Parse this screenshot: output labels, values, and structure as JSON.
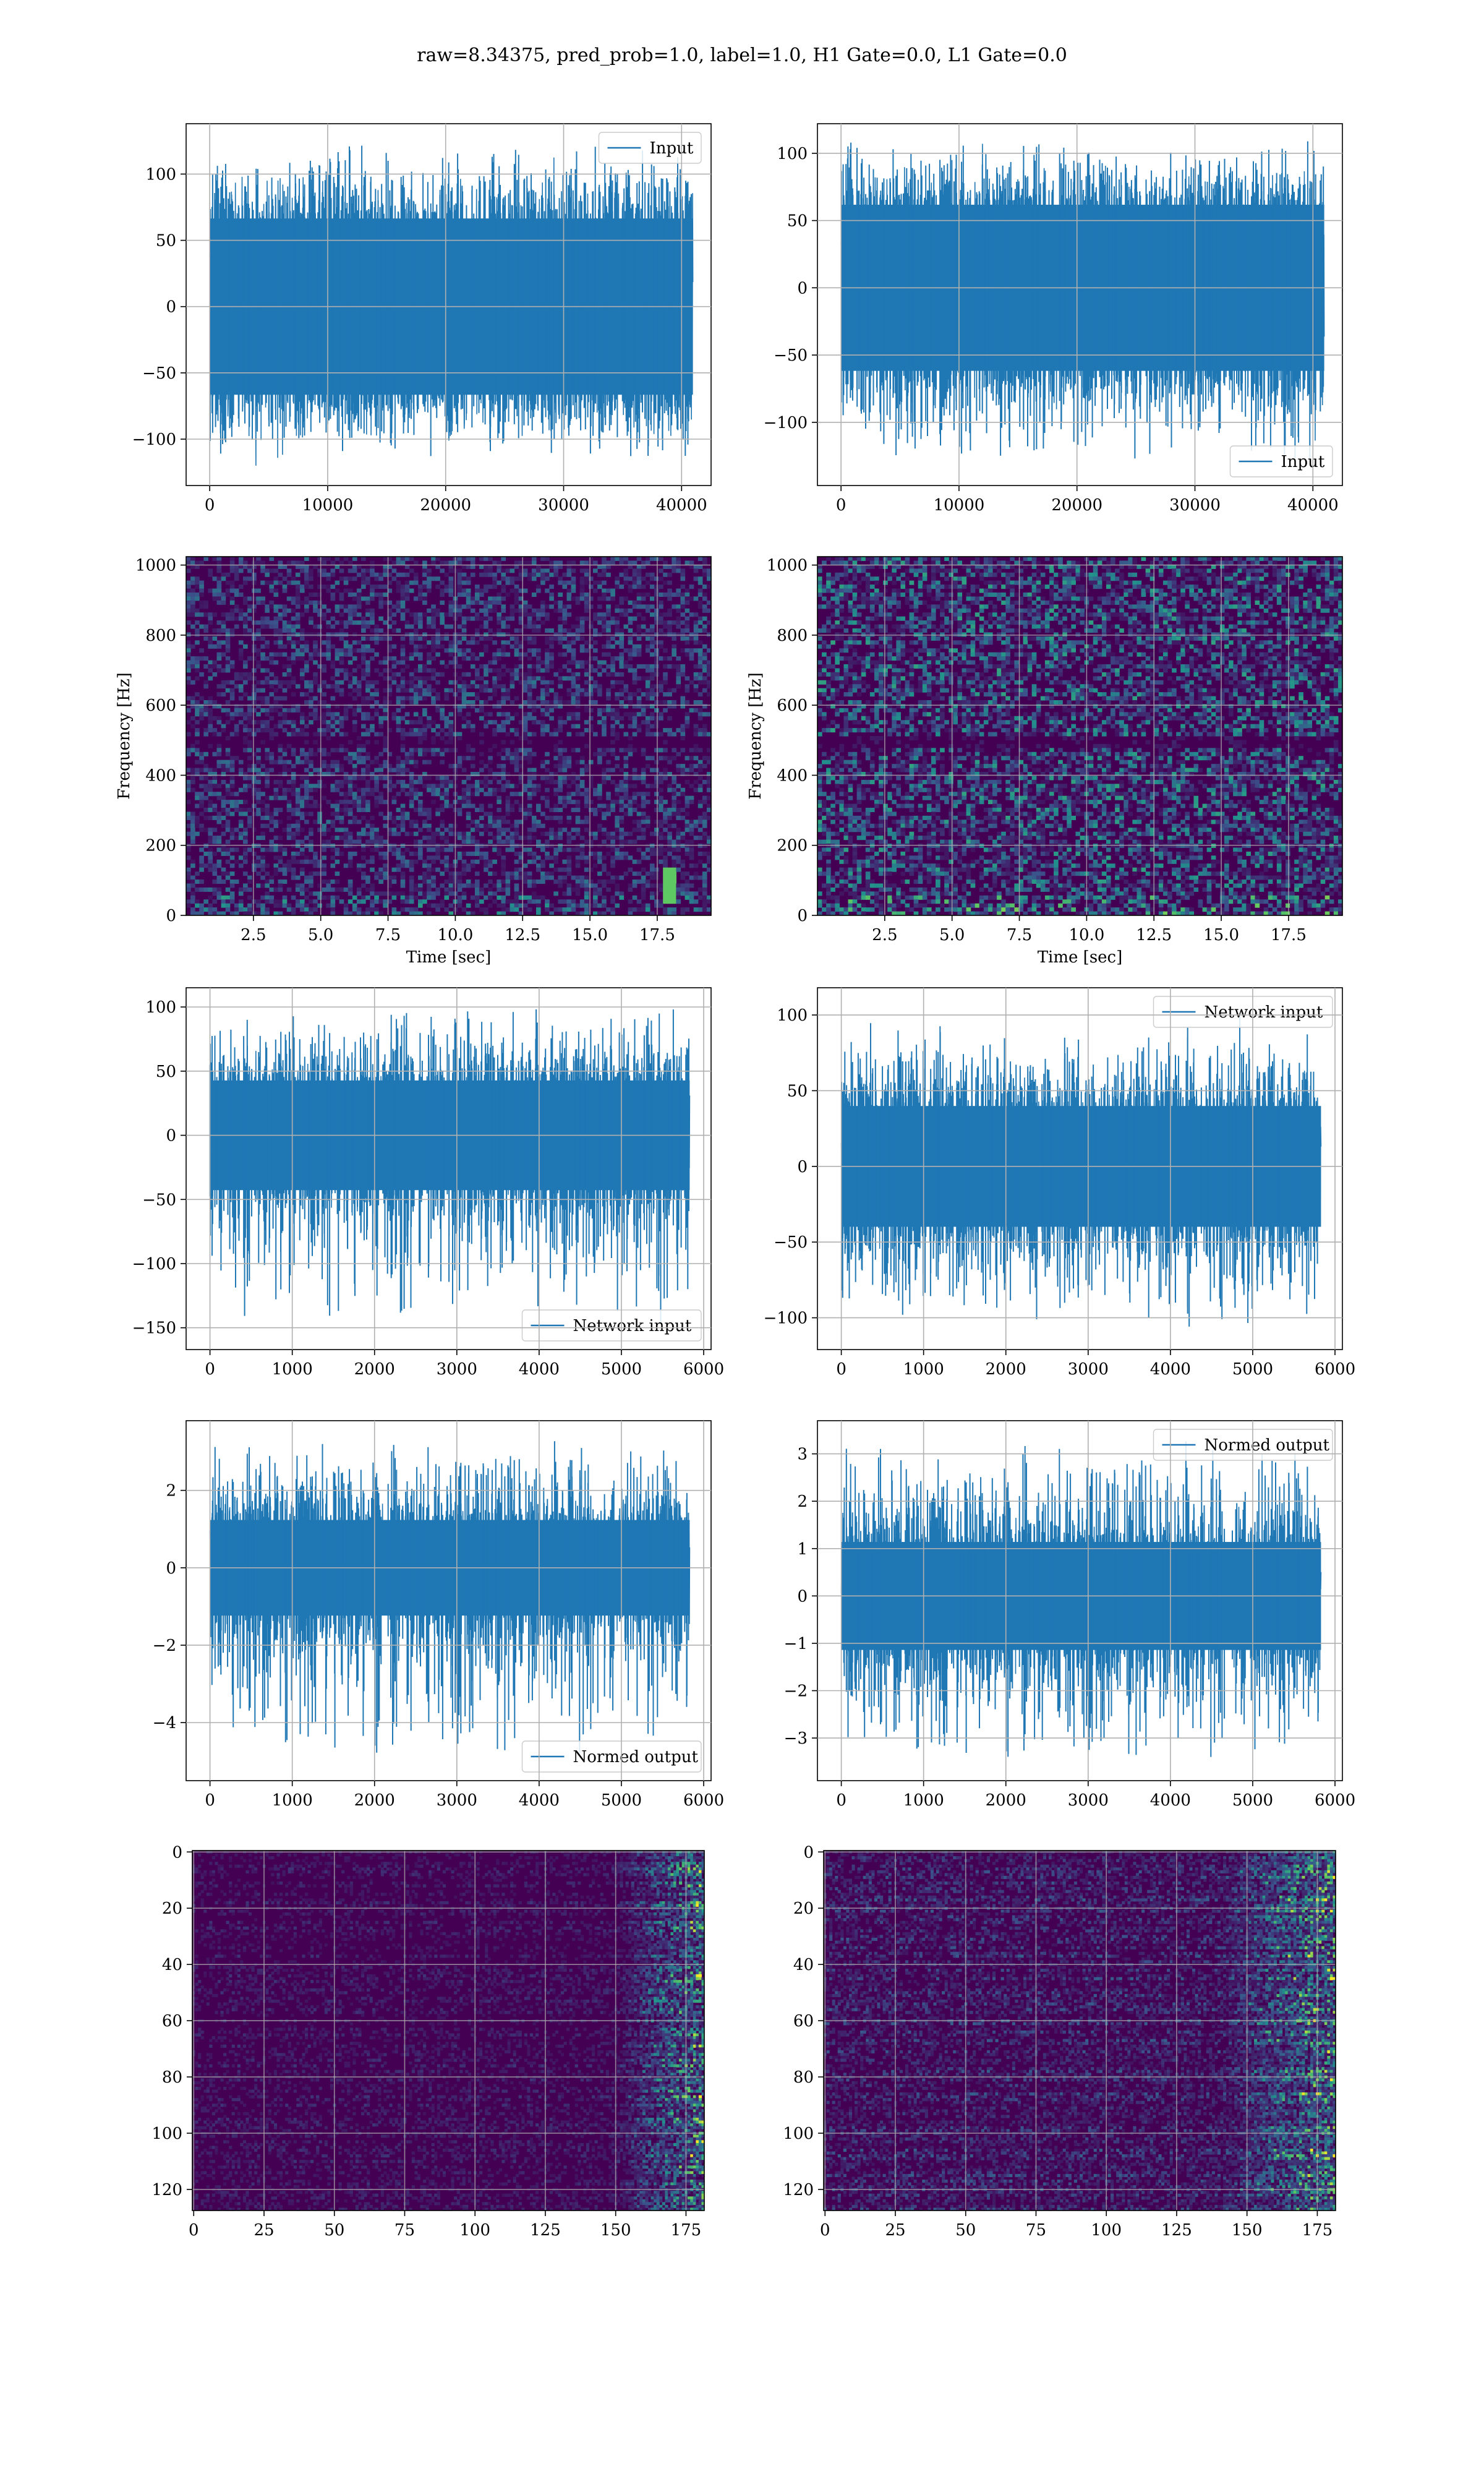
{
  "title": "raw=8.34375, pred_prob=1.0, label=1.0, H1 Gate=0.0, L1 Gate=0.0",
  "colors": {
    "line": "#1f77b4",
    "grid": "#b0b0b0",
    "viridis_low": "#440154",
    "viridis_mid": "#21918c",
    "viridis_high": "#fde725"
  },
  "chart_data": [
    {
      "id": "r1c1",
      "type": "line",
      "series": [
        {
          "name": "Input"
        }
      ],
      "xlim": [
        -2000,
        42500
      ],
      "ylim": [
        -135,
        138
      ],
      "xticks": [
        0,
        10000,
        20000,
        30000,
        40000
      ],
      "yticks": [
        -100,
        -50,
        0,
        50,
        100
      ],
      "xticklabels": [
        "0",
        "10000",
        "20000",
        "30000",
        "40000"
      ],
      "yticklabels": [
        "−100",
        "−50",
        "0",
        "50",
        "100"
      ],
      "legend": "top-right",
      "grid": true,
      "signal": {
        "x_range": [
          0,
          40960
        ],
        "core_amplitude": 70,
        "min": -120,
        "max": 128
      }
    },
    {
      "id": "r1c2",
      "type": "line",
      "series": [
        {
          "name": "Input"
        }
      ],
      "xlim": [
        -2000,
        42500
      ],
      "ylim": [
        -147,
        122
      ],
      "xticks": [
        0,
        10000,
        20000,
        30000,
        40000
      ],
      "yticks": [
        -100,
        -50,
        0,
        50,
        100
      ],
      "xticklabels": [
        "0",
        "10000",
        "20000",
        "30000",
        "40000"
      ],
      "yticklabels": [
        "−100",
        "−50",
        "0",
        "50",
        "100"
      ],
      "legend": "bottom-right",
      "grid": true,
      "signal": {
        "x_range": [
          0,
          40960
        ],
        "core_amplitude": 65,
        "min": -132,
        "max": 113
      }
    },
    {
      "id": "r2c1",
      "type": "heatmap",
      "xlim": [
        0,
        19.5
      ],
      "ylim": [
        0,
        1024
      ],
      "xticks": [
        2.5,
        5.0,
        7.5,
        10.0,
        12.5,
        15.0,
        17.5
      ],
      "yticks": [
        0,
        200,
        400,
        600,
        800,
        1000
      ],
      "xticklabels": [
        "2.5",
        "5.0",
        "7.5",
        "10.0",
        "12.5",
        "15.0",
        "17.5"
      ],
      "yticklabels": [
        "0",
        "200",
        "400",
        "600",
        "800",
        "1000"
      ],
      "xlabel": "Time [sec]",
      "ylabel": "Frequency [Hz]",
      "grid": true,
      "colormap": "viridis",
      "brightness": 0.18,
      "features": [
        {
          "time": 17.9,
          "freq_from": 40,
          "freq_to": 140,
          "level": 0.75
        }
      ],
      "dark_band_freq": 500
    },
    {
      "id": "r2c2",
      "type": "heatmap",
      "xlim": [
        0,
        19.5
      ],
      "ylim": [
        0,
        1024
      ],
      "xticks": [
        2.5,
        5.0,
        7.5,
        10.0,
        12.5,
        15.0,
        17.5
      ],
      "yticks": [
        0,
        200,
        400,
        600,
        800,
        1000
      ],
      "xticklabels": [
        "2.5",
        "5.0",
        "7.5",
        "10.0",
        "12.5",
        "15.0",
        "17.5"
      ],
      "yticklabels": [
        "0",
        "200",
        "400",
        "600",
        "800",
        "1000"
      ],
      "xlabel": "Time [sec]",
      "ylabel": "Frequency [Hz]",
      "grid": true,
      "colormap": "viridis",
      "brightness": 0.26,
      "features": [],
      "dark_band_freq": 500
    },
    {
      "id": "r3c1",
      "type": "line",
      "series": [
        {
          "name": "Network input"
        }
      ],
      "xlim": [
        -290,
        6090
      ],
      "ylim": [
        -167,
        115
      ],
      "xticks": [
        0,
        1000,
        2000,
        3000,
        4000,
        5000,
        6000
      ],
      "yticks": [
        -150,
        -100,
        -50,
        0,
        50,
        100
      ],
      "xticklabels": [
        "0",
        "1000",
        "2000",
        "3000",
        "4000",
        "5000",
        "6000"
      ],
      "yticklabels": [
        "−150",
        "−100",
        "−50",
        "0",
        "50",
        "100"
      ],
      "legend": "bottom-right",
      "grid": true,
      "signal": {
        "x_range": [
          0,
          5830
        ],
        "core_amplitude": 45,
        "min": -155,
        "max": 103
      }
    },
    {
      "id": "r3c2",
      "type": "line",
      "series": [
        {
          "name": "Network input"
        }
      ],
      "xlim": [
        -290,
        6090
      ],
      "ylim": [
        -121,
        118
      ],
      "xticks": [
        0,
        1000,
        2000,
        3000,
        4000,
        5000,
        6000
      ],
      "yticks": [
        -100,
        -50,
        0,
        50,
        100
      ],
      "xticklabels": [
        "0",
        "1000",
        "2000",
        "3000",
        "4000",
        "5000",
        "6000"
      ],
      "yticklabels": [
        "−100",
        "−50",
        "0",
        "50",
        "100"
      ],
      "legend": "top-right",
      "grid": true,
      "signal": {
        "x_range": [
          0,
          5830
        ],
        "core_amplitude": 42,
        "min": -110,
        "max": 100
      }
    },
    {
      "id": "r4c1",
      "type": "line",
      "series": [
        {
          "name": "Normed output"
        }
      ],
      "xlim": [
        -290,
        6090
      ],
      "ylim": [
        -5.5,
        3.8
      ],
      "xticks": [
        0,
        1000,
        2000,
        3000,
        4000,
        5000,
        6000
      ],
      "yticks": [
        -4,
        -2,
        0,
        2
      ],
      "xticklabels": [
        "0",
        "1000",
        "2000",
        "3000",
        "4000",
        "5000",
        "6000"
      ],
      "yticklabels": [
        "−4",
        "−2",
        "0",
        "2"
      ],
      "legend": "bottom-right",
      "grid": true,
      "signal": {
        "x_range": [
          0,
          5830
        ],
        "core_amplitude": 1.3,
        "min": -5.1,
        "max": 3.4
      }
    },
    {
      "id": "r4c2",
      "type": "line",
      "series": [
        {
          "name": "Normed output"
        }
      ],
      "xlim": [
        -290,
        6090
      ],
      "ylim": [
        -3.9,
        3.7
      ],
      "xticks": [
        0,
        1000,
        2000,
        3000,
        4000,
        5000,
        6000
      ],
      "yticks": [
        -3,
        -2,
        -1,
        0,
        1,
        2,
        3
      ],
      "xticklabels": [
        "0",
        "1000",
        "2000",
        "3000",
        "4000",
        "5000",
        "6000"
      ],
      "yticklabels": [
        "−3",
        "−2",
        "−1",
        "0",
        "1",
        "2",
        "3"
      ],
      "legend": "top-right",
      "grid": true,
      "signal": {
        "x_range": [
          0,
          5830
        ],
        "core_amplitude": 1.2,
        "min": -3.6,
        "max": 3.4
      }
    },
    {
      "id": "r5c1",
      "type": "heatmap",
      "xlim": [
        -0.5,
        181.5
      ],
      "ylim": [
        127.5,
        -0.5
      ],
      "xticks": [
        0,
        25,
        50,
        75,
        100,
        125,
        150,
        175
      ],
      "yticks": [
        0,
        20,
        40,
        60,
        80,
        100,
        120
      ],
      "xticklabels": [
        "0",
        "25",
        "50",
        "75",
        "100",
        "125",
        "150",
        "175"
      ],
      "yticklabels": [
        "0",
        "20",
        "40",
        "60",
        "80",
        "100",
        "120"
      ],
      "grid": true,
      "colormap": "viridis",
      "rows": 128,
      "cols": 182,
      "brightness": 0.12,
      "hot_columns_from": 150
    },
    {
      "id": "r5c2",
      "type": "heatmap",
      "xlim": [
        -0.5,
        181.5
      ],
      "ylim": [
        127.5,
        -0.5
      ],
      "xticks": [
        0,
        25,
        50,
        75,
        100,
        125,
        150,
        175
      ],
      "yticks": [
        0,
        20,
        40,
        60,
        80,
        100,
        120
      ],
      "xticklabels": [
        "0",
        "25",
        "50",
        "75",
        "100",
        "125",
        "150",
        "175"
      ],
      "yticklabels": [
        "0",
        "20",
        "40",
        "60",
        "80",
        "100",
        "120"
      ],
      "grid": true,
      "colormap": "viridis",
      "rows": 128,
      "cols": 182,
      "brightness": 0.22,
      "hot_columns_from": 140
    }
  ]
}
